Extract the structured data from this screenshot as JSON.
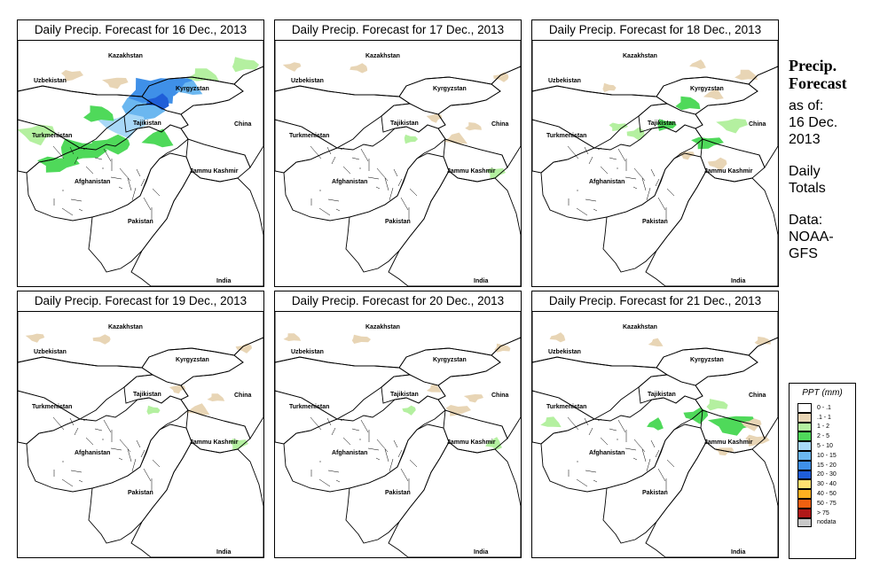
{
  "panels": [
    {
      "title": "Daily Precip. Forecast for  16 Dec., 2013",
      "intensity": "high"
    },
    {
      "title": "Daily Precip. Forecast for  17 Dec., 2013",
      "intensity": "light"
    },
    {
      "title": "Daily Precip. Forecast for  18 Dec., 2013",
      "intensity": "medium"
    },
    {
      "title": "Daily Precip. Forecast for  19 Dec., 2013",
      "intensity": "light"
    },
    {
      "title": "Daily Precip. Forecast for  20 Dec., 2013",
      "intensity": "light"
    },
    {
      "title": "Daily Precip. Forecast for  21 Dec., 2013",
      "intensity": "medium"
    }
  ],
  "map_labels": {
    "kazakhstan": "Kazakhstan",
    "uzbekistan": "Uzbekistan",
    "kyrgyzstan": "Kyrgyzstan",
    "tajikistan": "Tajikistan",
    "turkmenistan": "Turkmenistan",
    "china": "China",
    "afghanistan": "Afghanistan",
    "jammu_kashmir": "Jammu Kashmir",
    "pakistan": "Pakistan",
    "india": "India"
  },
  "side": {
    "title_line1": "Precip.",
    "title_line2": "Forecast",
    "asof_line1": "as of:",
    "asof_line2": "16 Dec.",
    "asof_line3": "2013",
    "daily_line1": "Daily",
    "daily_line2": "Totals",
    "data_line1": "Data:",
    "data_line2": "NOAA-",
    "data_line3": "GFS"
  },
  "legend": {
    "title": "PPT (mm)",
    "items": [
      {
        "label": "0 - .1",
        "color": "#ffffff"
      },
      {
        "label": ".1 - 1",
        "color": "#e8d5b5"
      },
      {
        "label": "1 - 2",
        "color": "#b4f0a0"
      },
      {
        "label": "2 - 5",
        "color": "#4fd95a"
      },
      {
        "label": "5 - 10",
        "color": "#a8d8f8"
      },
      {
        "label": "10 - 15",
        "color": "#6bb7f0"
      },
      {
        "label": "15 - 20",
        "color": "#3f90e8"
      },
      {
        "label": "20 - 30",
        "color": "#1f5ed8"
      },
      {
        "label": "30 - 40",
        "color": "#ffe070"
      },
      {
        "label": "40 - 50",
        "color": "#ffb020"
      },
      {
        "label": "50 - 75",
        "color": "#f06010"
      },
      {
        "label": "> 75",
        "color": "#b01818"
      },
      {
        "label": "nodata",
        "color": "#c8c8c8"
      }
    ]
  }
}
